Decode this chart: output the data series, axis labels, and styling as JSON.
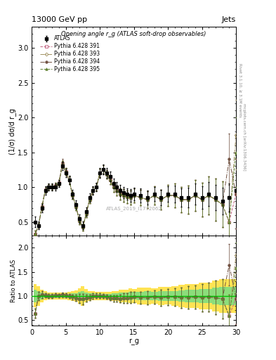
{
  "title_top": "13000 GeV pp",
  "title_right": "Jets",
  "plot_title": "Opening angle r_g (ATLAS soft-drop observables)",
  "watermark": "ATLAS_2019_I1772062",
  "right_label1": "Rivet 3.1.10, ≥ 3.1M events",
  "right_label2": "mcplots.cern.ch [arXiv:1306.3436]",
  "xlabel": "r_g",
  "ylabel_main": "(1/σ) dσ/d r_g",
  "ylabel_ratio": "Ratio to ATLAS",
  "x": [
    0.5,
    1.0,
    1.5,
    2.0,
    2.5,
    3.0,
    3.5,
    4.0,
    4.5,
    5.0,
    5.5,
    6.0,
    6.5,
    7.0,
    7.5,
    8.0,
    8.5,
    9.0,
    9.5,
    10.0,
    10.5,
    11.0,
    11.5,
    12.0,
    12.5,
    13.0,
    13.5,
    14.0,
    14.5,
    15.0,
    16.0,
    17.0,
    18.0,
    19.0,
    20.0,
    21.0,
    22.0,
    23.0,
    24.0,
    25.0,
    26.0,
    27.0,
    28.0,
    29.0,
    30.0
  ],
  "atlas_y": [
    0.5,
    0.45,
    0.7,
    0.95,
    1.0,
    1.0,
    1.0,
    1.05,
    1.3,
    1.2,
    1.1,
    0.9,
    0.75,
    0.55,
    0.45,
    0.65,
    0.85,
    0.95,
    1.0,
    1.2,
    1.25,
    1.2,
    1.15,
    1.05,
    1.0,
    0.95,
    0.92,
    0.9,
    0.88,
    0.9,
    0.88,
    0.85,
    0.9,
    0.85,
    0.9,
    0.9,
    0.85,
    0.85,
    0.9,
    0.85,
    0.9,
    0.85,
    0.8,
    0.85,
    0.95
  ],
  "atlas_yerr": [
    0.08,
    0.06,
    0.06,
    0.06,
    0.05,
    0.05,
    0.05,
    0.05,
    0.06,
    0.06,
    0.06,
    0.06,
    0.06,
    0.06,
    0.06,
    0.06,
    0.06,
    0.06,
    0.06,
    0.07,
    0.07,
    0.07,
    0.07,
    0.07,
    0.07,
    0.08,
    0.08,
    0.08,
    0.09,
    0.09,
    0.1,
    0.1,
    0.1,
    0.11,
    0.11,
    0.12,
    0.13,
    0.14,
    0.15,
    0.16,
    0.17,
    0.18,
    0.19,
    0.2,
    0.22
  ],
  "py391_y": [
    0.32,
    0.45,
    0.72,
    0.96,
    1.0,
    1.0,
    1.02,
    1.06,
    1.32,
    1.22,
    1.1,
    0.88,
    0.72,
    0.52,
    0.42,
    0.62,
    0.82,
    0.95,
    1.0,
    1.2,
    1.25,
    1.18,
    1.1,
    1.0,
    0.95,
    0.9,
    0.88,
    0.86,
    0.85,
    0.88,
    0.85,
    0.82,
    0.88,
    0.82,
    0.88,
    0.88,
    0.82,
    0.82,
    0.88,
    0.82,
    0.88,
    0.82,
    0.75,
    0.5,
    0.9
  ],
  "py391_yerr": [
    0.05,
    0.04,
    0.05,
    0.04,
    0.04,
    0.04,
    0.04,
    0.04,
    0.05,
    0.05,
    0.05,
    0.05,
    0.05,
    0.05,
    0.05,
    0.05,
    0.05,
    0.05,
    0.05,
    0.06,
    0.06,
    0.06,
    0.06,
    0.07,
    0.07,
    0.08,
    0.09,
    0.09,
    0.1,
    0.1,
    0.11,
    0.12,
    0.13,
    0.14,
    0.15,
    0.17,
    0.18,
    0.2,
    0.22,
    0.24,
    0.27,
    0.3,
    0.33,
    0.37,
    0.5
  ],
  "py393_y": [
    0.32,
    0.45,
    0.72,
    0.96,
    1.0,
    1.0,
    1.02,
    1.06,
    1.33,
    1.22,
    1.1,
    0.88,
    0.72,
    0.52,
    0.42,
    0.62,
    0.82,
    0.95,
    1.0,
    1.2,
    1.25,
    1.18,
    1.1,
    1.0,
    0.95,
    0.9,
    0.88,
    0.86,
    0.85,
    0.88,
    0.85,
    0.82,
    0.88,
    0.82,
    0.88,
    0.88,
    0.82,
    0.82,
    0.88,
    0.82,
    0.88,
    0.82,
    0.75,
    0.5,
    1.75
  ],
  "py393_yerr": [
    0.05,
    0.04,
    0.05,
    0.04,
    0.04,
    0.04,
    0.04,
    0.04,
    0.05,
    0.05,
    0.05,
    0.05,
    0.05,
    0.05,
    0.05,
    0.05,
    0.05,
    0.05,
    0.05,
    0.06,
    0.06,
    0.06,
    0.06,
    0.07,
    0.07,
    0.08,
    0.09,
    0.09,
    0.1,
    0.1,
    0.11,
    0.12,
    0.13,
    0.14,
    0.15,
    0.17,
    0.18,
    0.2,
    0.22,
    0.24,
    0.27,
    0.3,
    0.33,
    0.37,
    0.5
  ],
  "py394_y": [
    0.32,
    0.45,
    0.72,
    0.96,
    1.0,
    1.0,
    1.02,
    1.06,
    1.35,
    1.22,
    1.1,
    0.88,
    0.72,
    0.52,
    0.42,
    0.62,
    0.82,
    0.95,
    1.0,
    1.2,
    1.25,
    1.18,
    1.1,
    1.0,
    0.95,
    0.9,
    0.88,
    0.86,
    0.85,
    0.88,
    0.85,
    0.82,
    0.88,
    0.82,
    0.88,
    0.88,
    0.82,
    0.82,
    0.88,
    0.82,
    0.88,
    0.82,
    0.75,
    1.4,
    0.9
  ],
  "py394_yerr": [
    0.05,
    0.04,
    0.05,
    0.04,
    0.04,
    0.04,
    0.04,
    0.04,
    0.05,
    0.05,
    0.05,
    0.05,
    0.05,
    0.05,
    0.05,
    0.05,
    0.05,
    0.05,
    0.05,
    0.06,
    0.06,
    0.06,
    0.06,
    0.07,
    0.07,
    0.08,
    0.09,
    0.09,
    0.1,
    0.1,
    0.11,
    0.12,
    0.13,
    0.14,
    0.15,
    0.17,
    0.18,
    0.2,
    0.22,
    0.24,
    0.27,
    0.3,
    0.33,
    0.37,
    0.5
  ],
  "py395_y": [
    0.32,
    0.45,
    0.72,
    0.96,
    1.0,
    1.0,
    1.02,
    1.06,
    1.32,
    1.22,
    1.1,
    0.88,
    0.72,
    0.52,
    0.42,
    0.62,
    0.82,
    0.95,
    1.0,
    1.2,
    1.25,
    1.18,
    1.1,
    1.0,
    0.95,
    0.9,
    0.88,
    0.86,
    0.85,
    0.88,
    0.85,
    0.82,
    0.88,
    0.82,
    0.88,
    0.88,
    0.82,
    0.82,
    0.88,
    0.82,
    0.88,
    0.82,
    0.75,
    0.5,
    1.5
  ],
  "py395_yerr": [
    0.05,
    0.04,
    0.05,
    0.04,
    0.04,
    0.04,
    0.04,
    0.04,
    0.05,
    0.05,
    0.05,
    0.05,
    0.05,
    0.05,
    0.05,
    0.05,
    0.05,
    0.05,
    0.05,
    0.06,
    0.06,
    0.06,
    0.06,
    0.07,
    0.07,
    0.08,
    0.09,
    0.09,
    0.1,
    0.1,
    0.11,
    0.12,
    0.13,
    0.14,
    0.15,
    0.17,
    0.18,
    0.2,
    0.22,
    0.24,
    0.27,
    0.3,
    0.33,
    0.37,
    0.5
  ],
  "color_391": "#C06080",
  "color_393": "#A09060",
  "color_394": "#705040",
  "color_395": "#608030",
  "color_atlas": "#000000",
  "band_yellow": "#FFE040",
  "band_green": "#80DD80",
  "xlim": [
    0,
    30
  ],
  "ylim_main": [
    0.3,
    3.3
  ],
  "ylim_ratio": [
    0.38,
    2.25
  ],
  "yticks_main": [
    0.5,
    1.0,
    1.5,
    2.0,
    2.5,
    3.0
  ],
  "yticks_ratio": [
    0.5,
    1.0,
    1.5,
    2.0
  ],
  "xticks": [
    0,
    5,
    10,
    15,
    20,
    25,
    30
  ]
}
